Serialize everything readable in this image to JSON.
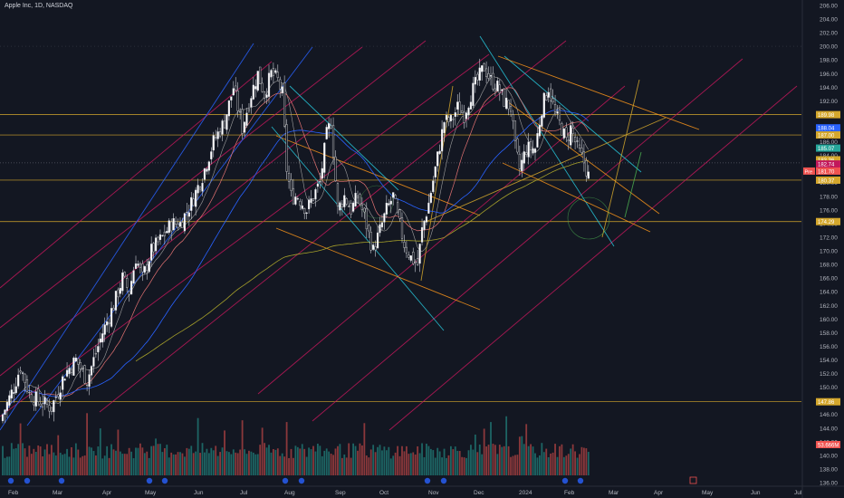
{
  "title": "Apple Inc, 1D, NASDAQ",
  "colors": {
    "background": "#131722",
    "up": "#26a69a",
    "down": "#ef5350",
    "axis_text": "#b2b5be",
    "gold": "#d4a72c",
    "magenta": "#c2185b",
    "blue": "#2962ff",
    "cyan": "#26c6da",
    "orange": "#f7931a",
    "olive": "#a59f2a"
  },
  "chart_data": {
    "type": "candlestick",
    "title": "Apple Inc, 1D, NASDAQ",
    "ylim": [
      136,
      206
    ],
    "y_ticks": [
      "206.00",
      "204.00",
      "202.00",
      "200.00",
      "198.00",
      "196.00",
      "194.00",
      "192.00",
      "190.00",
      "188.00",
      "186.00",
      "184.00",
      "182.00",
      "180.00",
      "178.00",
      "176.00",
      "174.00",
      "172.00",
      "170.00",
      "168.00",
      "166.00",
      "164.00",
      "162.00",
      "160.00",
      "158.00",
      "156.00",
      "154.00",
      "152.00",
      "150.00",
      "148.00",
      "146.00",
      "144.00",
      "142.00",
      "140.00",
      "138.00",
      "136.00"
    ],
    "x_ticks": [
      "Feb",
      "Mar",
      "Apr",
      "May",
      "Jun",
      "Jul",
      "Aug",
      "Sep",
      "Oct",
      "Nov",
      "Dec",
      "2024",
      "Feb",
      "Mar",
      "Apr",
      "May",
      "Jun",
      "Jul"
    ],
    "price_labels": [
      {
        "text": "189.98",
        "value": 189.98,
        "color": "#d4a72c"
      },
      {
        "text": "188.04",
        "value": 188.04,
        "color": "#2962ff"
      },
      {
        "text": "187.00",
        "value": 187.0,
        "color": "#d4a72c"
      },
      {
        "text": "185.07",
        "value": 185.07,
        "color": "#26a69a"
      },
      {
        "text": "183.36",
        "value": 183.36,
        "color": "#d4a72c"
      },
      {
        "text": "182.74",
        "value": 182.74,
        "color": "#c2185b"
      },
      {
        "text": "181.70",
        "value": 181.7,
        "color": "#ef5350",
        "prefix": "Pre"
      },
      {
        "text": "180.37",
        "value": 180.37,
        "color": "#d4a72c"
      },
      {
        "text": "174.29",
        "value": 174.29,
        "color": "#d4a72c"
      },
      {
        "text": "147.86",
        "value": 147.86,
        "color": "#d4a72c"
      },
      {
        "text": "53.666M",
        "value": null,
        "color": "#ef5350"
      }
    ],
    "horizontal_levels": [
      189.98,
      187.0,
      180.37,
      174.29,
      147.86
    ],
    "close_anchors": [
      {
        "i": 0,
        "v": 146
      },
      {
        "i": 5,
        "v": 150
      },
      {
        "i": 8,
        "v": 153
      },
      {
        "i": 12,
        "v": 149
      },
      {
        "i": 16,
        "v": 148
      },
      {
        "i": 22,
        "v": 147
      },
      {
        "i": 28,
        "v": 152
      },
      {
        "i": 33,
        "v": 154
      },
      {
        "i": 38,
        "v": 151
      },
      {
        "i": 45,
        "v": 158
      },
      {
        "i": 50,
        "v": 162
      },
      {
        "i": 54,
        "v": 166
      },
      {
        "i": 57,
        "v": 164
      },
      {
        "i": 60,
        "v": 169
      },
      {
        "i": 63,
        "v": 166
      },
      {
        "i": 67,
        "v": 170
      },
      {
        "i": 72,
        "v": 172
      },
      {
        "i": 76,
        "v": 174
      },
      {
        "i": 80,
        "v": 174
      },
      {
        "i": 85,
        "v": 177
      },
      {
        "i": 90,
        "v": 181
      },
      {
        "i": 95,
        "v": 186
      },
      {
        "i": 100,
        "v": 189
      },
      {
        "i": 104,
        "v": 194
      },
      {
        "i": 108,
        "v": 188
      },
      {
        "i": 112,
        "v": 193
      },
      {
        "i": 115,
        "v": 196
      },
      {
        "i": 118,
        "v": 193
      },
      {
        "i": 121,
        "v": 196
      },
      {
        "i": 124,
        "v": 195
      },
      {
        "i": 126,
        "v": 193
      },
      {
        "i": 128,
        "v": 182
      },
      {
        "i": 130,
        "v": 178
      },
      {
        "i": 133,
        "v": 178
      },
      {
        "i": 137,
        "v": 176
      },
      {
        "i": 140,
        "v": 178
      },
      {
        "i": 143,
        "v": 180
      },
      {
        "i": 146,
        "v": 187
      },
      {
        "i": 148,
        "v": 189
      },
      {
        "i": 151,
        "v": 176
      },
      {
        "i": 154,
        "v": 178
      },
      {
        "i": 157,
        "v": 176
      },
      {
        "i": 160,
        "v": 178
      },
      {
        "i": 163,
        "v": 175
      },
      {
        "i": 167,
        "v": 170
      },
      {
        "i": 170,
        "v": 173
      },
      {
        "i": 173,
        "v": 176
      },
      {
        "i": 176,
        "v": 178
      },
      {
        "i": 178,
        "v": 175
      },
      {
        "i": 181,
        "v": 171
      },
      {
        "i": 184,
        "v": 169
      },
      {
        "i": 187,
        "v": 168
      },
      {
        "i": 189,
        "v": 173
      },
      {
        "i": 192,
        "v": 177
      },
      {
        "i": 195,
        "v": 182
      },
      {
        "i": 199,
        "v": 189
      },
      {
        "i": 202,
        "v": 189
      },
      {
        "i": 205,
        "v": 191
      },
      {
        "i": 208,
        "v": 190
      },
      {
        "i": 211,
        "v": 193
      },
      {
        "i": 214,
        "v": 195
      },
      {
        "i": 217,
        "v": 197
      },
      {
        "i": 220,
        "v": 195
      },
      {
        "i": 223,
        "v": 194
      },
      {
        "i": 226,
        "v": 192
      },
      {
        "i": 229,
        "v": 191
      },
      {
        "i": 231,
        "v": 185
      },
      {
        "i": 233,
        "v": 182
      },
      {
        "i": 236,
        "v": 185
      },
      {
        "i": 240,
        "v": 185
      },
      {
        "i": 243,
        "v": 191
      },
      {
        "i": 246,
        "v": 194
      },
      {
        "i": 249,
        "v": 190
      },
      {
        "i": 252,
        "v": 188
      },
      {
        "i": 254,
        "v": 186
      },
      {
        "i": 256,
        "v": 188
      },
      {
        "i": 259,
        "v": 185
      },
      {
        "i": 262,
        "v": 183
      },
      {
        "i": 264,
        "v": 181
      }
    ],
    "candle_count": 265
  }
}
